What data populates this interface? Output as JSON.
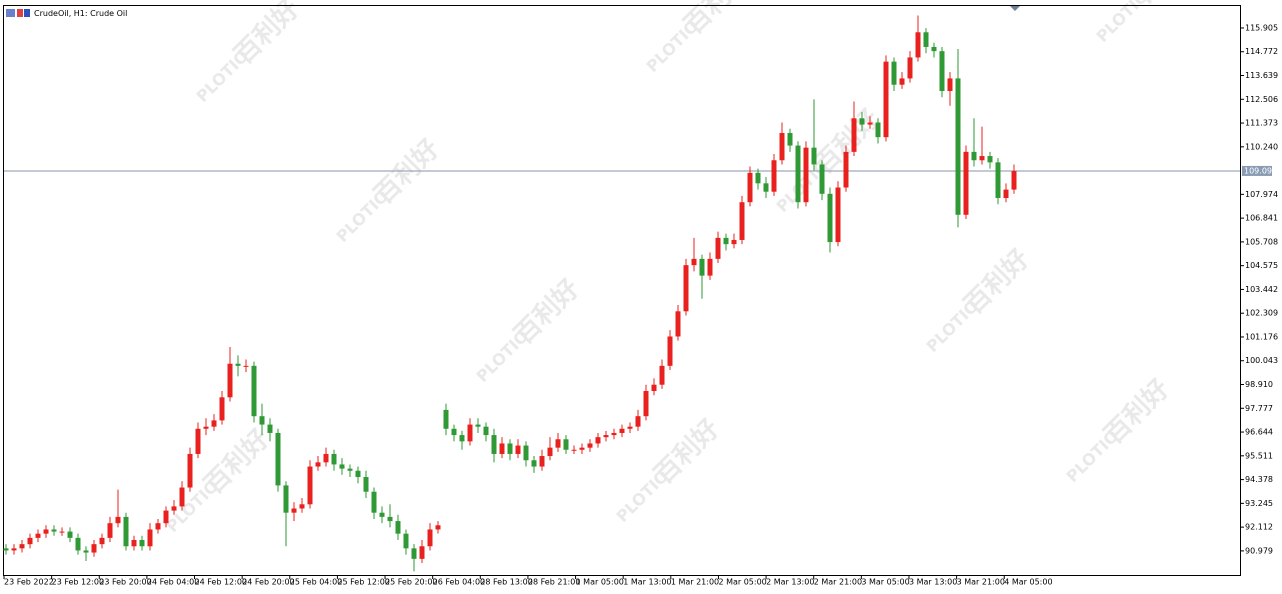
{
  "chart_data": {
    "type": "candlestick",
    "title": "CrudeOil, H1:  Crude Oil",
    "watermark": {
      "brand": "PLOTIO",
      "chinese": "百利好"
    },
    "categories": [
      "23 Feb 2022",
      "23 Feb 12:00",
      "23 Feb 20:00",
      "24 Feb 04:00",
      "24 Feb 12:00",
      "24 Feb 20:00",
      "25 Feb 04:00",
      "25 Feb 12:00",
      "25 Feb 20:00",
      "26 Feb 04:00",
      "28 Feb 13:00",
      "28 Feb 21:00",
      "1 Mar 05:00",
      "1 Mar 13:00",
      "1 Mar 21:00",
      "2 Mar 05:00",
      "2 Mar 13:00",
      "2 Mar 21:00",
      "3 Mar 05:00",
      "3 Mar 13:00",
      "3 Mar 21:00",
      "4 Mar 05:00"
    ],
    "up_color": "#e8201e",
    "down_color": "#2f9a35",
    "ylim": [
      89.83,
      117.0
    ],
    "yticks": [
      115.905,
      114.772,
      113.639,
      112.506,
      111.373,
      {
        "value": 110.24,
        "label": "110.240"
      },
      107.974,
      106.841,
      105.708,
      104.575,
      103.442,
      102.309,
      101.176,
      100.043,
      {
        "value": 98.91,
        "label": "98.910"
      },
      97.777,
      96.644,
      95.511,
      94.378,
      93.245,
      92.112,
      90.979
    ],
    "current_price": {
      "value": 109.09,
      "label": "109.090"
    },
    "ohlc": [
      [
        91.1,
        91.3,
        90.8,
        91.0
      ],
      [
        91.0,
        91.3,
        90.8,
        91.1
      ],
      [
        91.1,
        91.5,
        90.9,
        91.3
      ],
      [
        91.3,
        91.8,
        91.1,
        91.6
      ],
      [
        91.6,
        92.0,
        91.4,
        91.8
      ],
      [
        91.8,
        92.2,
        91.6,
        92.0
      ],
      [
        92.0,
        92.2,
        91.7,
        91.9
      ],
      [
        91.9,
        92.1,
        91.7,
        91.9
      ],
      [
        91.9,
        92.1,
        91.4,
        91.6
      ],
      [
        91.6,
        91.8,
        90.8,
        91.0
      ],
      [
        91.0,
        91.2,
        90.5,
        90.9
      ],
      [
        90.9,
        91.5,
        90.7,
        91.3
      ],
      [
        91.3,
        91.8,
        91.1,
        91.6
      ],
      [
        91.6,
        92.6,
        91.4,
        92.3
      ],
      [
        92.3,
        93.9,
        92.1,
        92.6
      ],
      [
        92.6,
        92.8,
        91.0,
        91.2
      ],
      [
        91.2,
        91.7,
        91.0,
        91.5
      ],
      [
        91.5,
        91.7,
        91.0,
        91.2
      ],
      [
        91.2,
        92.3,
        91.0,
        92.0
      ],
      [
        92.0,
        92.5,
        91.8,
        92.3
      ],
      [
        92.3,
        93.1,
        92.1,
        92.9
      ],
      [
        92.9,
        93.4,
        92.7,
        93.1
      ],
      [
        93.1,
        94.3,
        92.9,
        94.0
      ],
      [
        94.0,
        95.9,
        93.8,
        95.6
      ],
      [
        95.6,
        97.1,
        95.4,
        96.8
      ],
      [
        96.8,
        97.3,
        96.5,
        96.9
      ],
      [
        96.9,
        97.5,
        96.7,
        97.2
      ],
      [
        97.2,
        98.6,
        97.0,
        98.3
      ],
      [
        98.3,
        100.7,
        98.1,
        99.9
      ],
      [
        99.9,
        100.3,
        99.3,
        99.8
      ],
      [
        99.8,
        100.1,
        99.5,
        99.8
      ],
      [
        99.8,
        100.0,
        97.1,
        97.4
      ],
      [
        97.4,
        98.0,
        96.5,
        97.0
      ],
      [
        97.0,
        97.3,
        96.2,
        96.6
      ],
      [
        96.6,
        96.8,
        93.8,
        94.1
      ],
      [
        94.1,
        94.3,
        91.2,
        92.8
      ],
      [
        92.8,
        93.3,
        92.4,
        93.0
      ],
      [
        93.0,
        93.5,
        92.8,
        93.2
      ],
      [
        93.2,
        95.3,
        93.0,
        95.0
      ],
      [
        95.0,
        95.5,
        94.8,
        95.2
      ],
      [
        95.2,
        95.9,
        95.0,
        95.6
      ],
      [
        95.6,
        95.8,
        94.8,
        95.1
      ],
      [
        95.1,
        95.4,
        94.6,
        94.9
      ],
      [
        94.9,
        95.1,
        94.5,
        94.8
      ],
      [
        94.8,
        95.0,
        94.2,
        94.5
      ],
      [
        94.5,
        94.8,
        93.5,
        93.8
      ],
      [
        93.8,
        94.0,
        92.5,
        92.8
      ],
      [
        92.8,
        93.1,
        92.3,
        92.6
      ],
      [
        92.6,
        93.2,
        92.1,
        92.4
      ],
      [
        92.4,
        92.7,
        91.5,
        91.8
      ],
      [
        91.8,
        92.0,
        90.8,
        91.1
      ],
      [
        91.1,
        91.3,
        90.0,
        90.6
      ],
      [
        90.6,
        91.5,
        90.4,
        91.2
      ],
      [
        91.2,
        92.3,
        91.0,
        92.0
      ],
      [
        92.0,
        92.4,
        91.8,
        92.2
      ],
      [
        97.7,
        98.0,
        96.5,
        96.8
      ],
      [
        96.8,
        97.0,
        96.2,
        96.5
      ],
      [
        96.5,
        96.7,
        95.8,
        96.2
      ],
      [
        96.2,
        97.3,
        96.0,
        97.0
      ],
      [
        97.0,
        97.3,
        96.6,
        96.9
      ],
      [
        96.9,
        97.1,
        96.2,
        96.5
      ],
      [
        96.5,
        96.8,
        95.2,
        95.6
      ],
      [
        95.6,
        96.4,
        95.4,
        96.1
      ],
      [
        96.1,
        96.3,
        95.3,
        95.6
      ],
      [
        95.6,
        96.3,
        95.4,
        96.0
      ],
      [
        96.0,
        96.2,
        95.0,
        95.3
      ],
      [
        95.3,
        95.5,
        94.7,
        95.0
      ],
      [
        95.0,
        95.8,
        94.8,
        95.5
      ],
      [
        95.5,
        96.4,
        95.3,
        95.9
      ],
      [
        95.9,
        96.6,
        95.7,
        96.3
      ],
      [
        96.3,
        96.5,
        95.6,
        95.8
      ],
      [
        95.8,
        96.0,
        95.6,
        95.8
      ],
      [
        95.8,
        96.1,
        95.6,
        95.9
      ],
      [
        95.9,
        96.3,
        95.7,
        96.1
      ],
      [
        96.1,
        96.6,
        95.9,
        96.4
      ],
      [
        96.4,
        96.7,
        96.2,
        96.5
      ],
      [
        96.5,
        96.8,
        96.3,
        96.6
      ],
      [
        96.6,
        97.0,
        96.4,
        96.8
      ],
      [
        96.8,
        97.1,
        96.6,
        96.9
      ],
      [
        96.9,
        97.7,
        96.7,
        97.4
      ],
      [
        97.4,
        98.9,
        97.2,
        98.6
      ],
      [
        98.6,
        99.2,
        98.4,
        98.9
      ],
      [
        98.9,
        100.1,
        98.7,
        99.8
      ],
      [
        99.8,
        101.5,
        99.6,
        101.2
      ],
      [
        101.2,
        102.7,
        101.0,
        102.4
      ],
      [
        102.4,
        104.9,
        102.2,
        104.6
      ],
      [
        104.6,
        105.9,
        104.3,
        104.9
      ],
      [
        104.9,
        105.1,
        103.0,
        104.1
      ],
      [
        104.1,
        105.2,
        103.9,
        104.9
      ],
      [
        104.9,
        106.2,
        104.7,
        105.9
      ],
      [
        105.9,
        106.1,
        105.3,
        105.6
      ],
      [
        105.6,
        106.1,
        105.4,
        105.8
      ],
      [
        105.8,
        107.9,
        105.6,
        107.6
      ],
      [
        107.6,
        109.3,
        107.4,
        109.0
      ],
      [
        109.0,
        109.2,
        108.2,
        108.5
      ],
      [
        108.5,
        108.8,
        107.8,
        108.1
      ],
      [
        108.1,
        109.9,
        107.9,
        109.6
      ],
      [
        109.6,
        111.4,
        109.4,
        110.9
      ],
      [
        110.9,
        111.1,
        110.0,
        110.3
      ],
      [
        110.3,
        110.5,
        107.3,
        107.6
      ],
      [
        107.6,
        110.5,
        107.4,
        110.2
      ],
      [
        110.2,
        112.5,
        109.1,
        109.4
      ],
      [
        109.4,
        109.6,
        107.7,
        108.0
      ],
      [
        108.0,
        108.3,
        105.2,
        105.7
      ],
      [
        105.7,
        108.6,
        105.5,
        108.3
      ],
      [
        108.3,
        110.3,
        108.1,
        110.0
      ],
      [
        110.0,
        112.4,
        109.8,
        111.6
      ],
      [
        111.6,
        111.9,
        111.0,
        111.3
      ],
      [
        111.3,
        111.7,
        111.1,
        111.4
      ],
      [
        111.4,
        111.6,
        110.4,
        110.7
      ],
      [
        110.7,
        114.6,
        110.5,
        114.3
      ],
      [
        114.3,
        114.5,
        112.9,
        113.2
      ],
      [
        113.2,
        113.8,
        113.0,
        113.5
      ],
      [
        113.5,
        114.8,
        113.3,
        114.5
      ],
      [
        114.5,
        116.5,
        114.3,
        115.7
      ],
      [
        115.7,
        115.9,
        114.7,
        115.0
      ],
      [
        115.0,
        115.2,
        114.5,
        114.8
      ],
      [
        114.8,
        115.0,
        112.6,
        112.9
      ],
      [
        112.9,
        113.8,
        112.2,
        113.5
      ],
      [
        113.5,
        114.9,
        106.4,
        107.0
      ],
      [
        107.0,
        110.3,
        106.8,
        110.0
      ],
      [
        110.0,
        111.6,
        109.3,
        109.6
      ],
      [
        109.6,
        111.2,
        109.4,
        109.8
      ],
      [
        109.8,
        110.0,
        109.2,
        109.5
      ],
      [
        109.5,
        109.7,
        107.5,
        107.8
      ],
      [
        107.8,
        108.5,
        107.6,
        108.2
      ],
      [
        108.2,
        109.4,
        108.0,
        109.09
      ]
    ]
  }
}
